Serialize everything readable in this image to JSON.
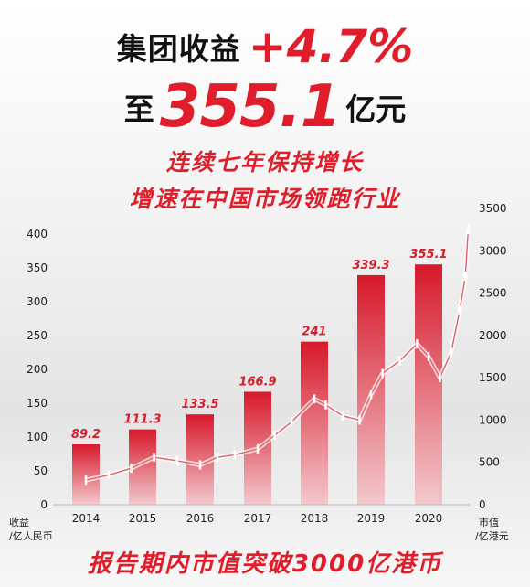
{
  "headline": {
    "line1_text": "集团收益",
    "line1_value": "+4.7%",
    "line2_prefix": "至",
    "line2_value": "355.1",
    "line2_suffix": "亿元",
    "line3": "连续七年保持增长",
    "line4": "增速在中国市场领跑行业"
  },
  "footer": "报告期内市值突破3000亿港币",
  "colors": {
    "accent": "#e01d2a",
    "bar_top": "#d7192b",
    "bar_bottom": "#f2c9cd"
  },
  "chart_data": {
    "type": "bar",
    "categories": [
      "2014",
      "2015",
      "2016",
      "2017",
      "2018",
      "2019",
      "2020"
    ],
    "values": [
      89.2,
      111.3,
      133.5,
      166.9,
      241,
      339.3,
      355.1
    ],
    "value_labels": [
      "89.2",
      "111.3",
      "133.5",
      "166.9",
      "241",
      "339.3",
      "355.1"
    ],
    "y_left": {
      "label_line1": "收益",
      "label_line2": "/亿人民币",
      "range": [
        0,
        400
      ],
      "ticks": [
        "0",
        "50",
        "100",
        "150",
        "200",
        "250",
        "300",
        "350",
        "400"
      ]
    },
    "y_right": {
      "label_line1": "市值",
      "label_line2": "/亿港元",
      "range": [
        0,
        3500
      ],
      "ticks": [
        "0",
        "500",
        "1000",
        "1500",
        "2000",
        "2500",
        "3000",
        "3500"
      ]
    },
    "market_cap_series": {
      "type": "candlestick-line",
      "x": [
        2014.0,
        2014.4,
        2014.8,
        2015.2,
        2015.6,
        2016.0,
        2016.3,
        2016.6,
        2017.0,
        2017.3,
        2017.6,
        2018.0,
        2018.2,
        2018.5,
        2018.8,
        2019.0,
        2019.2,
        2019.5,
        2019.8,
        2020.0,
        2020.2,
        2020.4,
        2020.55,
        2020.65,
        2020.7
      ],
      "y": [
        290,
        350,
        430,
        560,
        520,
        470,
        560,
        590,
        660,
        820,
        980,
        1250,
        1180,
        1050,
        1000,
        1300,
        1550,
        1700,
        1900,
        1750,
        1500,
        1800,
        2300,
        2700,
        3250
      ]
    },
    "grid": false,
    "legend": "none"
  }
}
